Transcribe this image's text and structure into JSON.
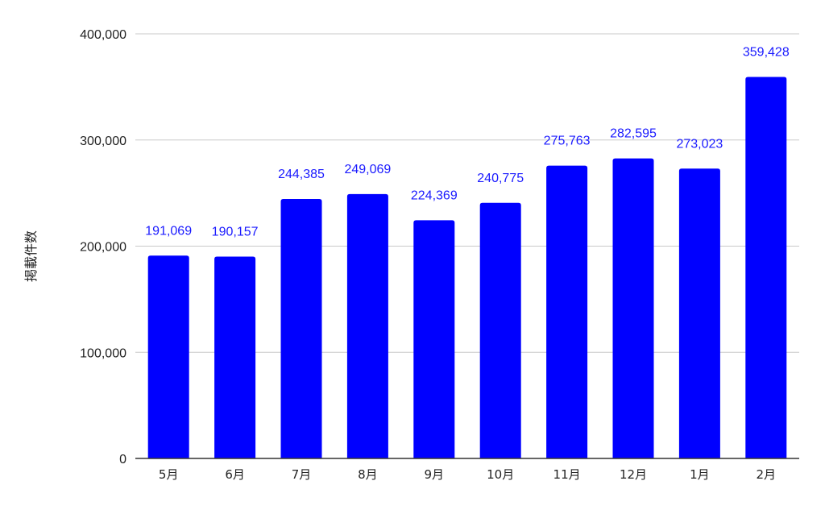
{
  "chart_data": {
    "type": "bar",
    "title": "",
    "xlabel": "",
    "ylabel": "掲載件数",
    "categories": [
      "5月",
      "6月",
      "7月",
      "8月",
      "9月",
      "10月",
      "11月",
      "12月",
      "1月",
      "2月"
    ],
    "values": [
      191069,
      190157,
      244385,
      249069,
      224369,
      240775,
      275763,
      282595,
      273023,
      359428
    ],
    "data_labels": [
      "191,069",
      "190,157",
      "244,385",
      "249,069",
      "224,369",
      "240,775",
      "275,763",
      "282,595",
      "273,023",
      "359,428"
    ],
    "ylim": [
      0,
      400000
    ],
    "yticks": [
      0,
      100000,
      200000,
      300000,
      400000
    ],
    "ytick_labels": [
      "0",
      "100,000",
      "200,000",
      "300,000",
      "400,000"
    ],
    "grid": true,
    "legend": "none",
    "colors": {
      "bar": "#0000ff",
      "data_label": "#1a1aff",
      "grid": "#c8c8c8",
      "axis": "#333333"
    }
  }
}
